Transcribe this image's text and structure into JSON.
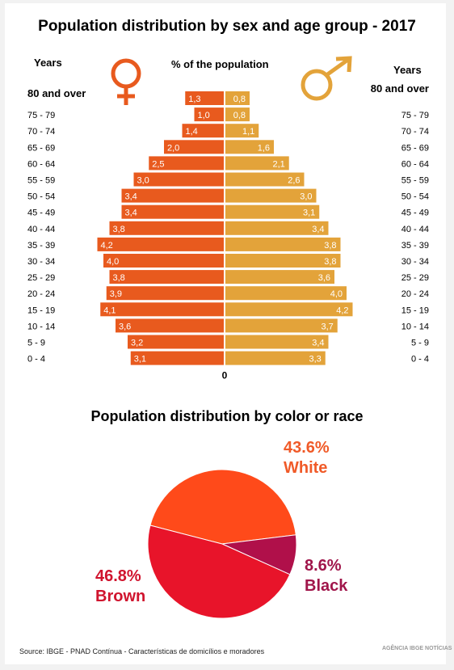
{
  "titles": {
    "pyramid": "Population distribution by sex and age group - 2017",
    "pie": "Population distribution by color or race"
  },
  "labels": {
    "years_left": "Years",
    "years_right": "Years",
    "pct": "% of the population"
  },
  "source": "Source: IBGE - PNAD Contínua - Características de domicílios e moradores",
  "logo": "AGÊNCIA IBGE NOTÍCIAS",
  "colors": {
    "female": "#e85a1e",
    "male": "#e3a33a",
    "white": "#ff4a1a",
    "brown": "#e8142a",
    "black": "#b0104a"
  },
  "chart_data": [
    {
      "type": "bar",
      "title": "Population distribution by sex and age group - 2017",
      "xlabel": "% of the population",
      "ylabel": "Years",
      "categories": [
        "80 and over",
        "75 - 79",
        "70 - 74",
        "65 - 69",
        "60 - 64",
        "55 - 59",
        "50 - 54",
        "45 - 49",
        "40 - 44",
        "35 - 39",
        "30 - 34",
        "25 - 29",
        "20 - 24",
        "15 - 19",
        "10 - 14",
        "5 - 9",
        "0 - 4"
      ],
      "series": [
        {
          "values": [
            1.3,
            1.0,
            1.4,
            2.0,
            2.5,
            3.0,
            3.4,
            3.4,
            3.8,
            4.2,
            4.0,
            3.8,
            3.9,
            4.1,
            3.6,
            3.2,
            3.1
          ],
          "labels": [
            "1,3",
            "1,0",
            "1,4",
            "2,0",
            "2,5",
            "3,0",
            "3,4",
            "3,4",
            "3,8",
            "4,2",
            "4,0",
            "3,8",
            "3,9",
            "4,1",
            "3,6",
            "3,2",
            "3,1"
          ]
        },
        {
          "values": [
            0.8,
            0.8,
            1.1,
            1.6,
            2.1,
            2.6,
            3.0,
            3.1,
            3.4,
            3.8,
            3.8,
            3.6,
            4.0,
            4.2,
            3.7,
            3.4,
            3.3
          ],
          "labels": [
            "0,8",
            "0,8",
            "1,1",
            "1,6",
            "2,1",
            "2,6",
            "3,0",
            "3,1",
            "3,4",
            "3,8",
            "3,8",
            "3,6",
            "4,0",
            "4,2",
            "3,7",
            "3,4",
            "3,3"
          ]
        }
      ],
      "axis_zero_label": "0"
    },
    {
      "type": "pie",
      "title": "Population distribution by color or race",
      "slices": [
        {
          "name": "White",
          "value": 43.6,
          "label": "43.6%"
        },
        {
          "name": "Black",
          "value": 8.6,
          "label": "8.6%"
        },
        {
          "name": "Brown",
          "value": 46.8,
          "label": "46.8%"
        }
      ]
    }
  ]
}
